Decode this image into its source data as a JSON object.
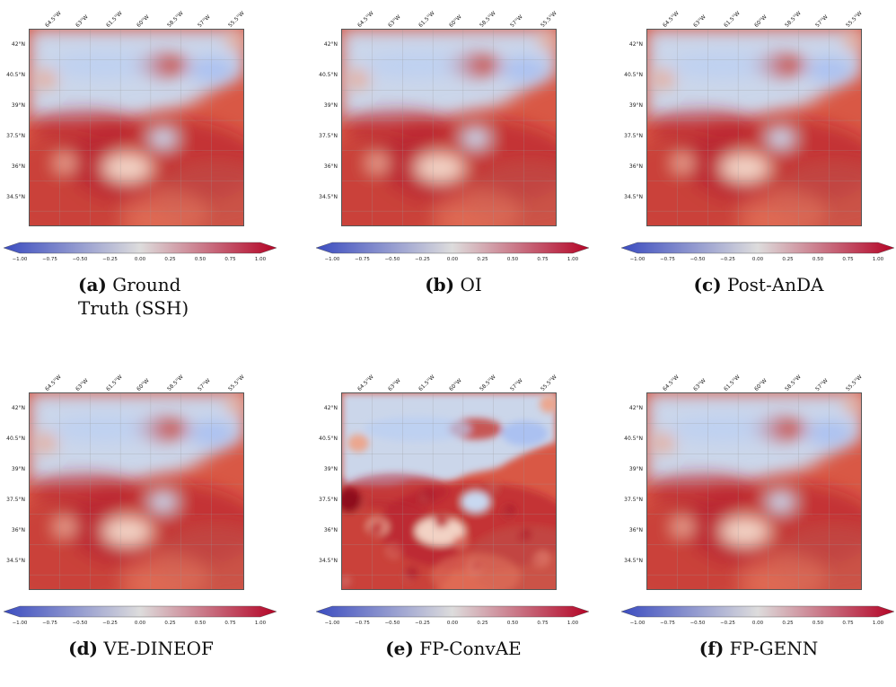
{
  "x_ticks": [
    "64.5°W",
    "63°W",
    "61.5°W",
    "60°W",
    "58.5°W",
    "57°W",
    "55.5°W"
  ],
  "y_ticks": [
    "42°N",
    "40.5°N",
    "39°N",
    "37.5°N",
    "36°N",
    "34.5°N"
  ],
  "colorbar_ticks": [
    "−1.00",
    "−0.75",
    "−0.50",
    "−0.25",
    "0.00",
    "0.25",
    "0.50",
    "0.75",
    "1.00"
  ],
  "colormap": {
    "low": "#3b4cc0",
    "mid": "#dddcdc",
    "high": "#b40426"
  },
  "panels": [
    {
      "letter": "(a)",
      "name": "Ground Truth (SSH)"
    },
    {
      "letter": "(b)",
      "name": "OI"
    },
    {
      "letter": "(c)",
      "name": "Post-AnDA"
    },
    {
      "letter": "(d)",
      "name": "VE-DINEOF"
    },
    {
      "letter": "(e)",
      "name": "FP-ConvAE"
    },
    {
      "letter": "(f)",
      "name": "FP-GENN"
    }
  ]
}
